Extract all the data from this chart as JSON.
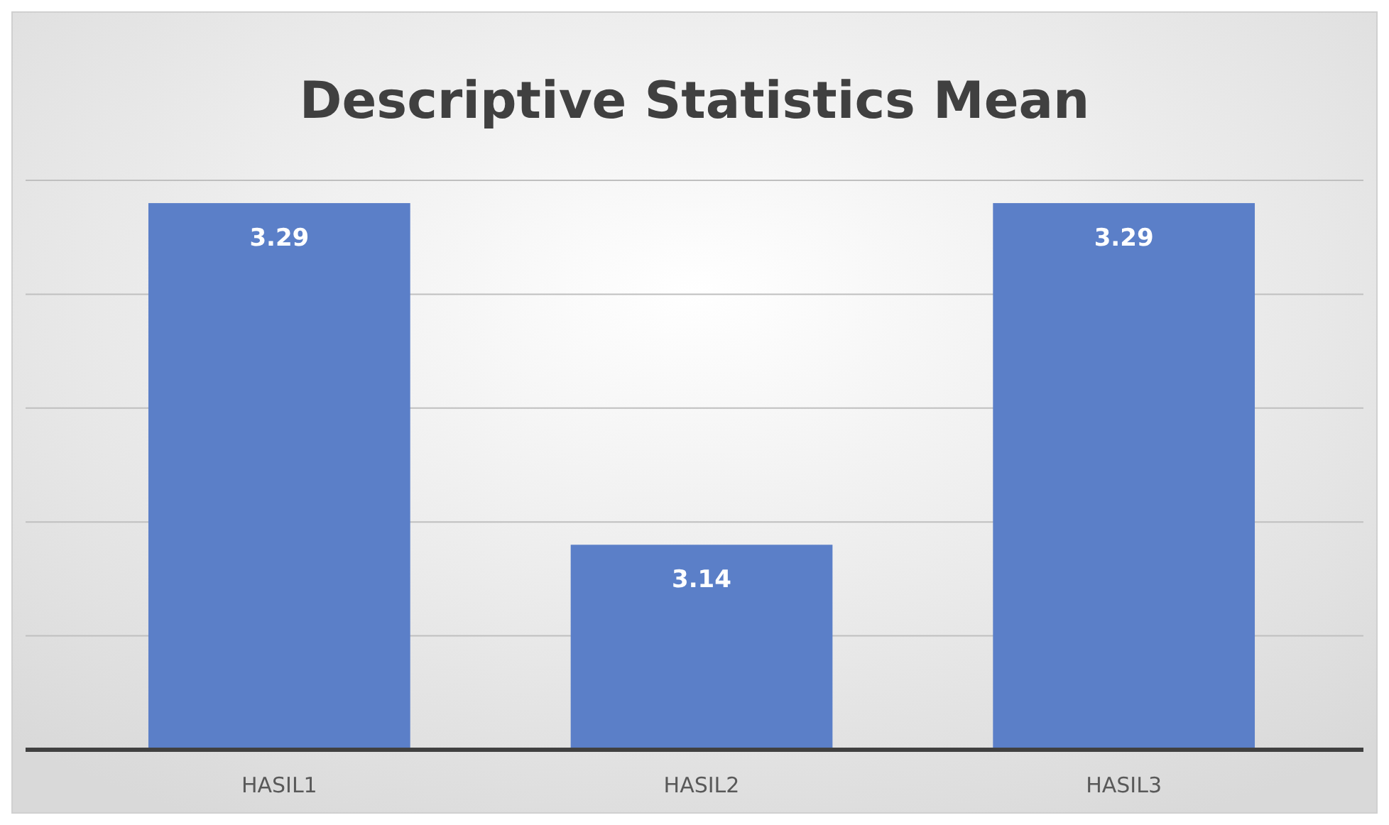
{
  "chart_data": {
    "type": "bar",
    "title": "Descriptive Statistics Mean",
    "categories": [
      "HASIL1",
      "HASIL2",
      "HASIL3"
    ],
    "values": [
      3.29,
      3.14,
      3.29
    ],
    "color": "#5b7fc8",
    "ylim": [
      3.05,
      3.3
    ],
    "yticks": [
      {
        "value": 3.05,
        "label": null
      },
      {
        "value": 3.1,
        "label": null
      },
      {
        "value": 3.15,
        "label": null
      },
      {
        "value": 3.2,
        "label": null
      },
      {
        "value": 3.25,
        "label": null
      },
      {
        "value": 3.3,
        "label": null
      }
    ],
    "tick_labels": "x",
    "grid": "y",
    "data_labels": true
  }
}
